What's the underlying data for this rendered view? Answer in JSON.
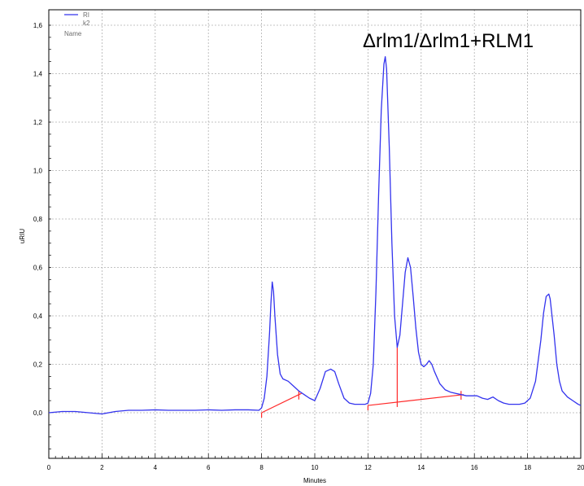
{
  "chart_data": {
    "type": "line",
    "title": "Δrlm1/Δrlm1+RLM1",
    "xlabel": "Minutes",
    "ylabel": "uRIU",
    "xlim": [
      0,
      20
    ],
    "ylim": [
      -0.2,
      1.65
    ],
    "grid": true,
    "legend": {
      "placement": "top-left",
      "series_label": "RI",
      "series_sublabel": "k2",
      "header": "Name"
    },
    "x_ticks": [
      0,
      2,
      4,
      6,
      8,
      10,
      12,
      14,
      16,
      18,
      20
    ],
    "y_ticks": [
      0.0,
      0.2,
      0.4,
      0.6,
      0.8,
      1.0,
      1.2,
      1.4,
      1.6
    ],
    "y_tick_labels": [
      "0,0",
      "0,2",
      "0,4",
      "0,6",
      "0,8",
      "1,0",
      "1,2",
      "1,4",
      "1,6"
    ],
    "colors": {
      "series": "#3333ee",
      "baseline": "#ff2a2a",
      "grid": "#b0b0b0"
    },
    "series": [
      {
        "name": "RI",
        "x": [
          0.0,
          0.5,
          1.0,
          1.5,
          2.0,
          2.5,
          3.0,
          3.5,
          4.0,
          4.5,
          5.0,
          5.5,
          6.0,
          6.5,
          7.0,
          7.5,
          7.9,
          8.0,
          8.1,
          8.2,
          8.3,
          8.35,
          8.4,
          8.45,
          8.5,
          8.6,
          8.7,
          8.8,
          9.0,
          9.2,
          9.4,
          9.6,
          9.8,
          10.0,
          10.2,
          10.4,
          10.6,
          10.75,
          10.9,
          11.1,
          11.3,
          11.5,
          11.7,
          11.9,
          12.0,
          12.1,
          12.2,
          12.3,
          12.4,
          12.5,
          12.6,
          12.65,
          12.7,
          12.8,
          12.9,
          13.0,
          13.1,
          13.2,
          13.3,
          13.4,
          13.5,
          13.6,
          13.7,
          13.8,
          13.9,
          14.0,
          14.1,
          14.2,
          14.3,
          14.4,
          14.5,
          14.7,
          14.9,
          15.1,
          15.3,
          15.5,
          15.7,
          15.9,
          16.1,
          16.3,
          16.5,
          16.6,
          16.7,
          16.9,
          17.1,
          17.3,
          17.5,
          17.7,
          17.9,
          18.1,
          18.3,
          18.5,
          18.6,
          18.7,
          18.8,
          18.85,
          18.9,
          19.0,
          19.1,
          19.2,
          19.3,
          19.5,
          19.7,
          19.9,
          20.0
        ],
        "y": [
          0.0,
          0.005,
          0.005,
          0.0,
          -0.005,
          0.005,
          0.01,
          0.01,
          0.012,
          0.01,
          0.01,
          0.01,
          0.012,
          0.01,
          0.012,
          0.012,
          0.01,
          0.02,
          0.06,
          0.15,
          0.33,
          0.45,
          0.54,
          0.5,
          0.4,
          0.24,
          0.16,
          0.14,
          0.13,
          0.11,
          0.09,
          0.075,
          0.06,
          0.05,
          0.1,
          0.17,
          0.18,
          0.17,
          0.12,
          0.06,
          0.04,
          0.035,
          0.035,
          0.035,
          0.04,
          0.08,
          0.2,
          0.5,
          0.9,
          1.25,
          1.44,
          1.47,
          1.42,
          1.1,
          0.7,
          0.4,
          0.27,
          0.32,
          0.45,
          0.58,
          0.64,
          0.6,
          0.48,
          0.35,
          0.25,
          0.2,
          0.19,
          0.2,
          0.215,
          0.2,
          0.17,
          0.12,
          0.095,
          0.085,
          0.08,
          0.075,
          0.07,
          0.07,
          0.07,
          0.06,
          0.055,
          0.06,
          0.065,
          0.05,
          0.04,
          0.035,
          0.035,
          0.035,
          0.04,
          0.06,
          0.13,
          0.3,
          0.41,
          0.48,
          0.49,
          0.47,
          0.42,
          0.32,
          0.2,
          0.13,
          0.09,
          0.065,
          0.05,
          0.035,
          0.03
        ]
      }
    ],
    "baselines": [
      {
        "x": [
          8.0,
          9.5
        ],
        "y": [
          0.0,
          0.08
        ]
      },
      {
        "x": [
          12.0,
          15.6
        ],
        "y": [
          0.03,
          0.075
        ]
      }
    ],
    "drop_lines": [
      {
        "x": 8.0,
        "y_top": 0.0
      },
      {
        "x": 9.4,
        "y_top": 0.09
      },
      {
        "x": 12.0,
        "y_top": 0.03
      },
      {
        "x": 13.1,
        "y_top": 0.27
      },
      {
        "x": 15.5,
        "y_top": 0.09
      }
    ]
  }
}
